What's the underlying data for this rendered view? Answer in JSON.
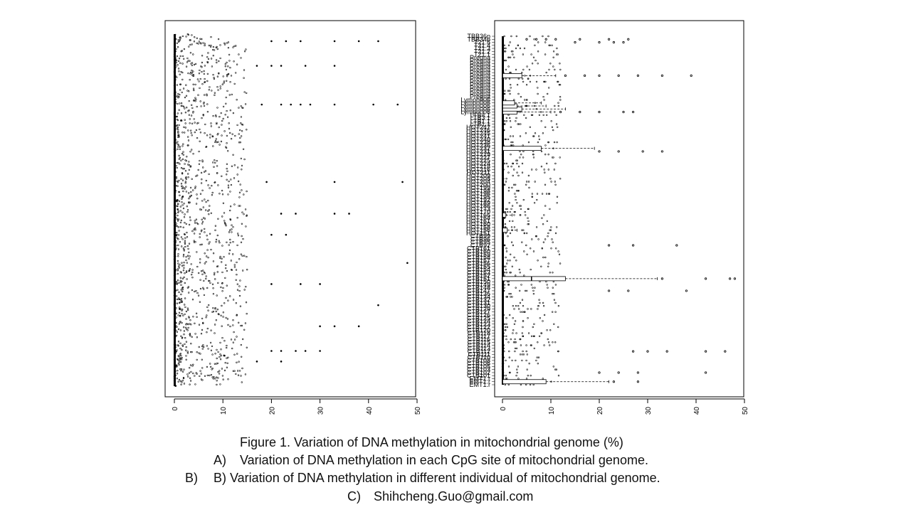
{
  "caption": {
    "title": "Figure 1. Variation of DNA methylation in mitochondrial genome (%)",
    "items": [
      {
        "label": "A)",
        "text": "Variation of DNA methylation in each CpG site of mitochondrial genome."
      },
      {
        "label": "B)",
        "text": "B) Variation of DNA methylation in different individual of mitochondrial genome."
      },
      {
        "label": "C)",
        "text": "Shihcheng.Guo@gmail.com"
      }
    ]
  },
  "chart_data": [
    {
      "type": "box",
      "orientation": "horizontal",
      "panel": "A",
      "x_ticks": [
        "0",
        "10",
        "20",
        "30",
        "40",
        "50"
      ],
      "xlim": [
        0,
        50
      ],
      "grid": false,
      "legend": "none",
      "point_color": "#000000",
      "outlier_sites": [
        {
          "position": 0.02,
          "values": [
            20,
            23,
            26,
            33,
            38,
            42
          ]
        },
        {
          "position": 0.09,
          "values": [
            17,
            20,
            22,
            27,
            33
          ]
        },
        {
          "position": 0.2,
          "values": [
            18,
            22,
            24,
            26,
            28,
            33,
            41,
            46
          ]
        },
        {
          "position": 0.42,
          "values": [
            19,
            33,
            47
          ]
        },
        {
          "position": 0.51,
          "values": [
            22,
            25,
            33,
            36
          ]
        },
        {
          "position": 0.57,
          "values": [
            20,
            23
          ]
        },
        {
          "position": 0.65,
          "values": [
            48
          ]
        },
        {
          "position": 0.71,
          "values": [
            20,
            26,
            30
          ]
        },
        {
          "position": 0.77,
          "values": [
            42
          ]
        },
        {
          "position": 0.83,
          "values": [
            30,
            33,
            38
          ]
        },
        {
          "position": 0.9,
          "values": [
            20,
            22,
            25,
            27,
            30
          ]
        },
        {
          "position": 0.93,
          "values": [
            17,
            22
          ]
        }
      ]
    },
    {
      "type": "box",
      "orientation": "horizontal",
      "panel": "B",
      "x_ticks": [
        "0",
        "10",
        "20",
        "30",
        "40",
        "50"
      ],
      "xlim": [
        0,
        50
      ],
      "grid": false,
      "legend": "none",
      "categories": [
        "EMT1.r",
        "EMT1.r",
        "EMT1.r",
        "CTB101",
        "CTB102",
        "CTB103",
        "CTB105",
        "CTB106",
        "CTB108",
        "CTB110",
        "CTB111",
        "CTB112",
        "CTB113",
        "CTB114",
        "CTB115",
        "CTB116",
        "CTB117",
        "CTB118",
        "CTB120",
        "CTB122",
        "CTB123",
        "CTB124",
        "CTB125",
        "CTB126",
        "CTB127",
        "CTB129",
        "CTB130",
        "CTB131",
        "CTB132",
        "CTB134",
        "CTB136",
        "CTB147",
        "CTB148",
        "CTB149",
        "CTB150",
        "CTB151",
        "CTB152",
        "CTB153",
        "CTB154",
        "CTB155",
        "CTB156",
        "CTB157",
        "CTB158",
        "CTB159",
        "CTB160",
        "CTB161",
        "CTB92",
        "CTB95",
        "CTB96",
        "CTB99",
        "HOT151",
        "HOT156",
        "HOT158",
        "HOT160",
        "HOT161",
        "HOT164",
        "HOT166",
        "HOT170",
        "HOT173",
        "HOT186",
        "HOT189",
        "HOT192",
        "HOT195",
        "HOT196",
        "HOT198",
        "HOT199",
        "HOT200",
        "HOT204",
        "HOT208",
        "HOT209",
        "HOT211",
        "HOT216",
        "HOT218",
        "HOT224",
        "HOT225",
        "HOT227",
        "HOT229",
        "HOT231",
        "HOT232",
        "HOT236",
        "HOT238",
        "HOT240",
        "HOT241",
        "HOT245",
        "HOT246",
        "HOT247",
        "LTB1.1",
        "LTB1.1",
        "LTB3.1",
        "LTB4.1",
        "Lymph006",
        "Lymph006",
        "Lymph006",
        "Lymph006",
        "Lymph006",
        "Pregna",
        "Pregna",
        "Pregna",
        "Pregna",
        "Pregna",
        "Pregna",
        "Pregna",
        "Pregna",
        "Pregna",
        "Pregna",
        "Pregna",
        "Pregna",
        "Pregna",
        "Pregna",
        "T21.1",
        "T21.2",
        "T21.3",
        "T21.4",
        "T21.5",
        "TBB34p",
        "TBB36p"
      ],
      "boxes": [
        {
          "category_index": 1,
          "q1": 0,
          "median": 0,
          "q3": 9,
          "whisker_max": 22
        },
        {
          "category_index": 15,
          "q1": 0,
          "median": 0,
          "q3": 0,
          "whisker_max": 0
        },
        {
          "category_index": 35,
          "q1": 0,
          "median": 6,
          "q3": 13,
          "whisker_max": 32
        },
        {
          "category_index": 51,
          "q1": 0,
          "median": 0,
          "q3": 1,
          "whisker_max": 3
        },
        {
          "category_index": 56,
          "q1": 0,
          "median": 0,
          "q3": 0.7,
          "whisker_max": 2
        },
        {
          "category_index": 78,
          "q1": 0,
          "median": 0,
          "q3": 8,
          "whisker_max": 19
        },
        {
          "category_index": 90,
          "q1": 0,
          "median": 0,
          "q3": 3,
          "whisker_max": 10
        },
        {
          "category_index": 91,
          "q1": 0,
          "median": 0,
          "q3": 4,
          "whisker_max": 13
        },
        {
          "category_index": 92,
          "q1": 0,
          "median": 0,
          "q3": 3,
          "whisker_max": 9
        },
        {
          "category_index": 93,
          "q1": 0,
          "median": 0,
          "q3": 2.5,
          "whisker_max": 8
        },
        {
          "category_index": 102,
          "q1": 0,
          "median": 0,
          "q3": 4,
          "whisker_max": 11
        }
      ],
      "outliers": [
        {
          "category_index": 113,
          "values": [
            15,
            20,
            23,
            25
          ]
        },
        {
          "category_index": 114,
          "values": [
            5,
            7,
            9,
            11,
            16,
            22,
            26
          ]
        },
        {
          "category_index": 102,
          "values": [
            13,
            17,
            20,
            24,
            28,
            33,
            39
          ]
        },
        {
          "category_index": 90,
          "values": [
            12,
            16,
            20,
            25,
            27
          ]
        },
        {
          "category_index": 77,
          "values": [
            20,
            24,
            29,
            33
          ]
        },
        {
          "category_index": 46,
          "values": [
            22,
            27,
            36
          ]
        },
        {
          "category_index": 35,
          "values": [
            33,
            42,
            47,
            48
          ]
        },
        {
          "category_index": 31,
          "values": [
            22,
            26,
            38
          ]
        },
        {
          "category_index": 11,
          "values": [
            27,
            30,
            34,
            42,
            46
          ]
        },
        {
          "category_index": 4,
          "values": [
            20,
            24,
            28,
            42
          ]
        },
        {
          "category_index": 1,
          "values": [
            23,
            28
          ]
        }
      ]
    }
  ]
}
